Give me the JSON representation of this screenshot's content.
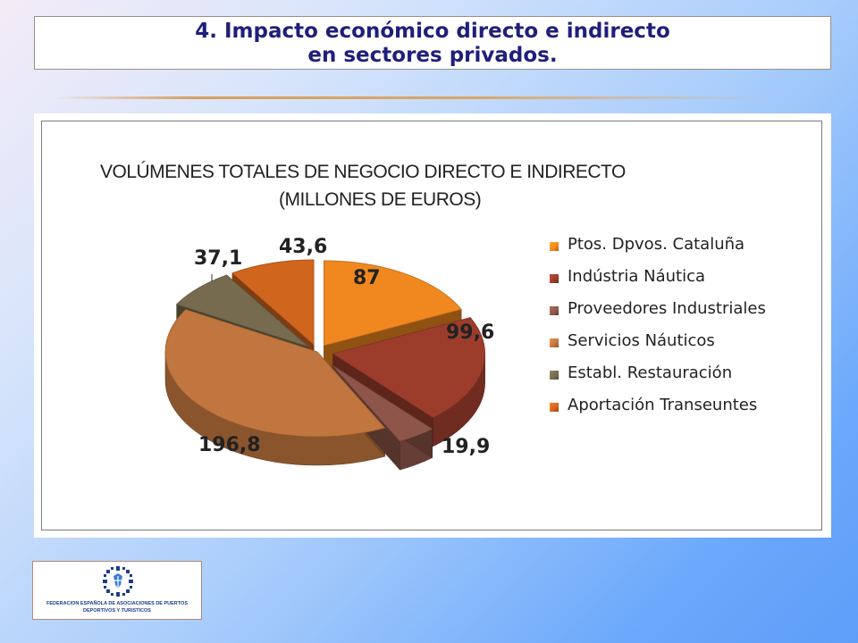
{
  "slide": {
    "title_line1": "4. Impacto económico directo e indirecto",
    "title_line2": "en sectores privados."
  },
  "chart_data": {
    "type": "pie",
    "title_line1": "VOLÚMENES TOTALES DE NEGOCIO DIRECTO E INDIRECTO",
    "title_line2": "(MILLONES DE EUROS)",
    "legend_position": "right",
    "categories": [
      "Ptos. Dpvos. Cataluña",
      "Indústria Náutica",
      "Proveedores Industriales",
      "Servicios Náuticos",
      "Establ. Restauración",
      "Aportación Transeuntes"
    ],
    "values": [
      87,
      99.6,
      19.9,
      196.8,
      37.1,
      43.6
    ],
    "value_labels": [
      "87",
      "99,6",
      "19,9",
      "196,8",
      "37,1",
      "43,6"
    ],
    "colors": [
      "#f0881f",
      "#9c3d2c",
      "#8e564a",
      "#c0763e",
      "#776b4f",
      "#d0651e"
    ]
  },
  "logo": {
    "text_line1": "FEDERACION ESPAÑOLA DE ASOCIACIONES DE PUERTOS",
    "text_line2": "DEPORTIVOS Y TURISTICOS",
    "icon": "federation-emblem-icon"
  }
}
